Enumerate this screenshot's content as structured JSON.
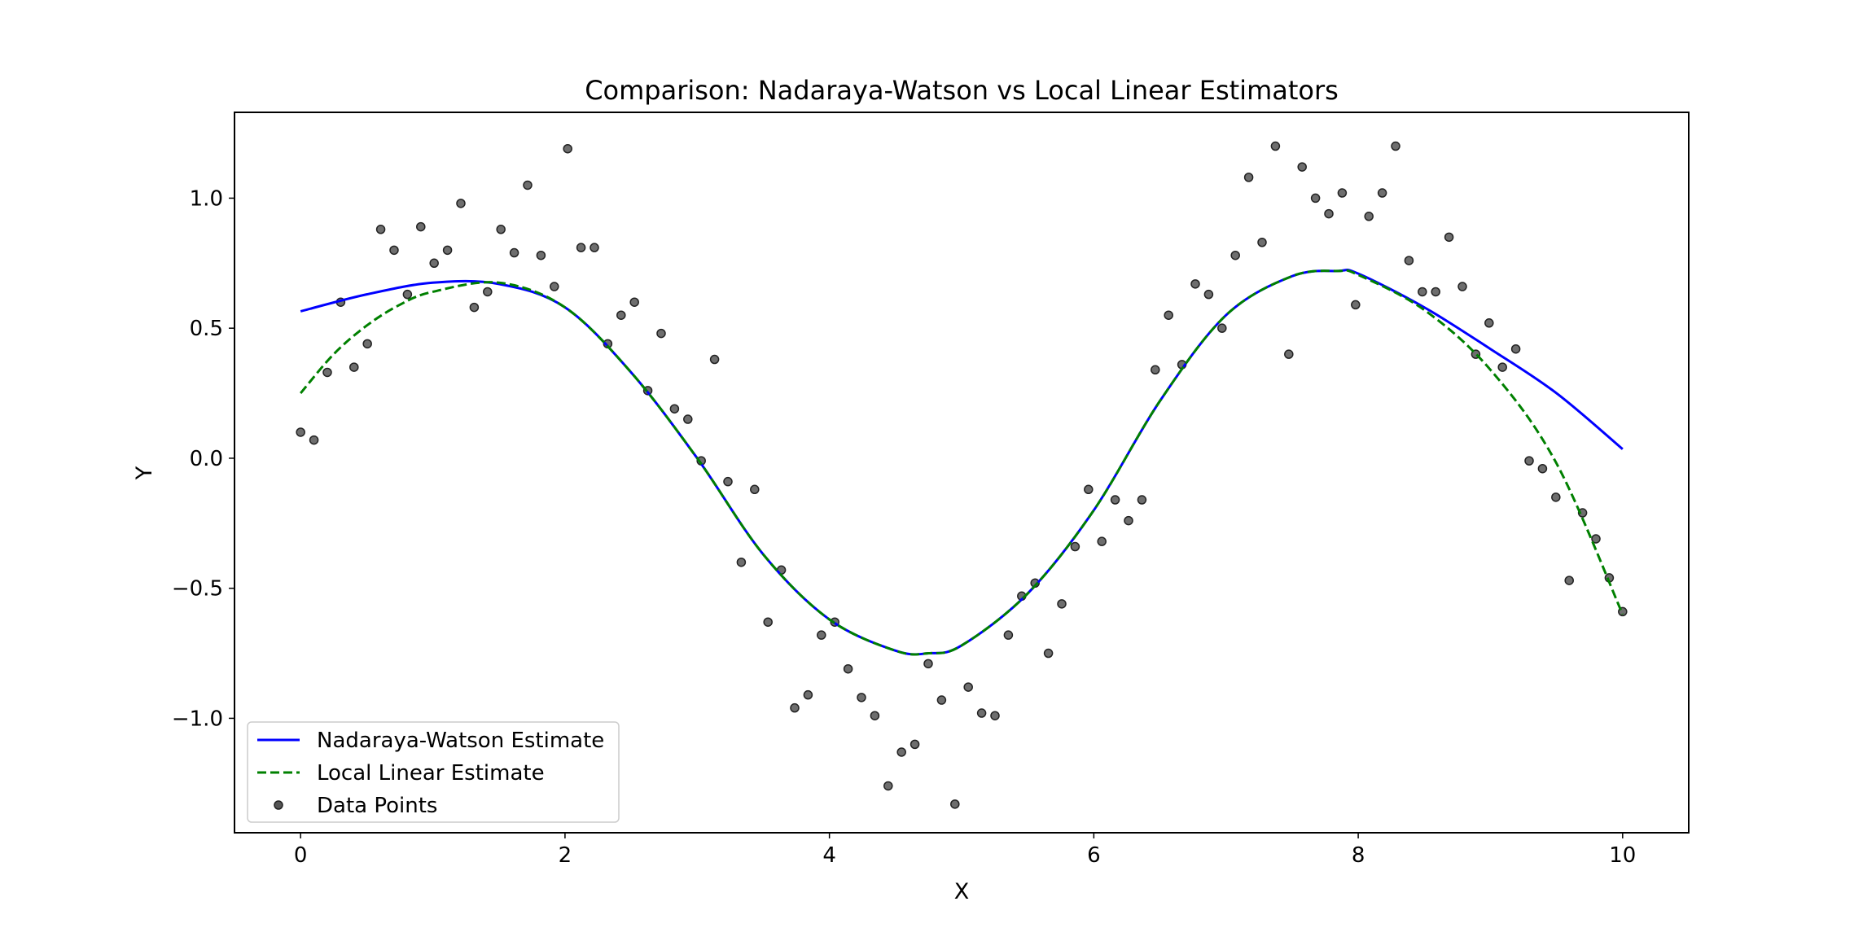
{
  "chart_data": {
    "type": "line",
    "title": "Comparison: Nadaraya-Watson vs Local Linear Estimators",
    "xlabel": "X",
    "ylabel": "Y",
    "xlim": [
      -0.5,
      10.5
    ],
    "ylim": [
      -1.44,
      1.33
    ],
    "xticks": [
      0,
      2,
      4,
      6,
      8,
      10
    ],
    "xtick_labels": [
      "0",
      "2",
      "4",
      "6",
      "8",
      "10"
    ],
    "yticks": [
      -1.0,
      -0.5,
      0.0,
      0.5,
      1.0
    ],
    "ytick_labels": [
      "−1.0",
      "−0.5",
      "0.0",
      "0.5",
      "1.0"
    ],
    "grid": false,
    "legend_position": "lower-left",
    "series": [
      {
        "name": "Nadaraya-Watson Estimate",
        "style": "solid",
        "color": "#0000ff",
        "x": [
          0,
          0.5,
          1,
          1.5,
          2,
          2.5,
          3,
          3.5,
          4,
          4.5,
          4.75,
          5,
          5.5,
          6,
          6.5,
          7,
          7.5,
          7.85,
          8,
          8.5,
          9,
          9.5,
          10
        ],
        "y": [
          0.565,
          0.63,
          0.675,
          0.67,
          0.58,
          0.33,
          0.0,
          -0.37,
          -0.62,
          -0.74,
          -0.75,
          -0.72,
          -0.52,
          -0.2,
          0.22,
          0.55,
          0.7,
          0.72,
          0.71,
          0.58,
          0.42,
          0.25,
          0.035
        ]
      },
      {
        "name": "Local Linear Estimate",
        "style": "dashed",
        "color": "#008000",
        "x": [
          0,
          0.25,
          0.5,
          0.75,
          1,
          1.5,
          2,
          2.5,
          3,
          3.5,
          4,
          4.5,
          4.75,
          5,
          5.5,
          6,
          6.5,
          7,
          7.5,
          7.85,
          8,
          8.5,
          9,
          9.5,
          10
        ],
        "y": [
          0.25,
          0.4,
          0.51,
          0.59,
          0.64,
          0.675,
          0.58,
          0.33,
          0.0,
          -0.37,
          -0.62,
          -0.74,
          -0.75,
          -0.72,
          -0.52,
          -0.2,
          0.22,
          0.55,
          0.7,
          0.72,
          0.705,
          0.57,
          0.34,
          -0.02,
          -0.6
        ]
      }
    ],
    "scatter": {
      "name": "Data Points",
      "color": "#555555",
      "x_range": [
        0,
        10
      ],
      "y": [
        0.1,
        0.07,
        0.33,
        0.6,
        0.35,
        0.44,
        0.88,
        0.8,
        0.63,
        0.89,
        0.75,
        0.8,
        0.98,
        0.58,
        0.64,
        0.88,
        0.79,
        1.05,
        0.78,
        0.66,
        1.19,
        0.81,
        0.81,
        0.44,
        0.55,
        0.6,
        0.26,
        0.48,
        0.19,
        0.15,
        -0.01,
        0.38,
        -0.09,
        -0.4,
        -0.12,
        -0.63,
        -0.43,
        -0.96,
        -0.91,
        -0.68,
        -0.63,
        -0.81,
        -0.92,
        -0.99,
        -1.26,
        -1.13,
        -1.1,
        -0.79,
        -0.93,
        -1.33,
        -0.88,
        -0.98,
        -0.99,
        -0.68,
        -0.53,
        -0.48,
        -0.75,
        -0.56,
        -0.34,
        -0.12,
        -0.32,
        -0.16,
        -0.24,
        -0.16,
        0.34,
        0.55,
        0.36,
        0.67,
        0.63,
        0.5,
        0.78,
        1.08,
        0.83,
        1.2,
        0.4,
        1.12,
        1.0,
        0.94,
        1.02,
        0.59,
        0.93,
        1.02,
        1.2,
        0.76,
        0.64,
        0.64,
        0.85,
        0.66,
        0.4,
        0.52,
        0.35,
        0.42,
        -0.01,
        -0.04,
        -0.15,
        -0.47,
        -0.21,
        -0.31,
        -0.46,
        -0.59
      ]
    }
  }
}
